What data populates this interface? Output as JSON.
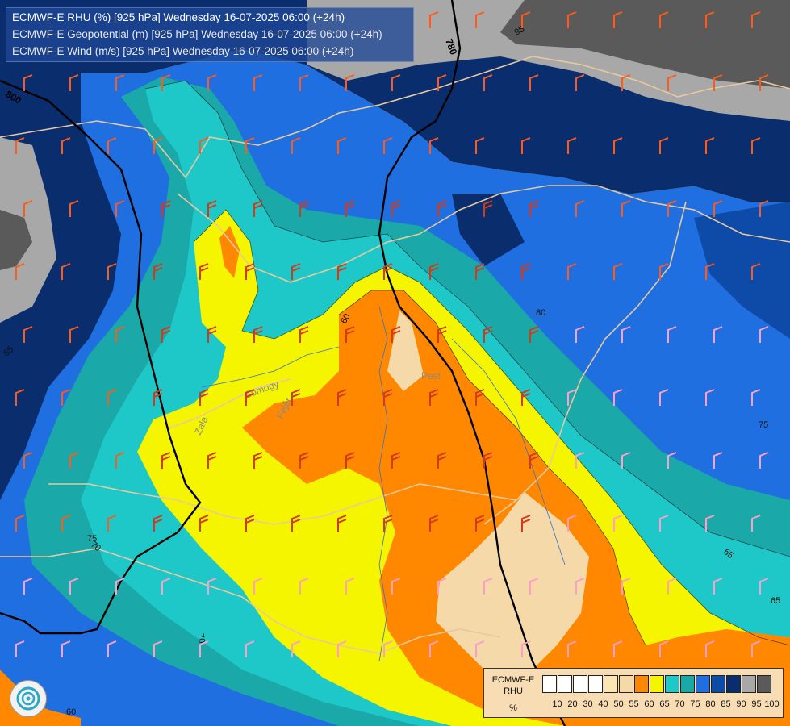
{
  "title": {
    "line1": "ECMWF-E RHU (%) [925 hPa] Wednesday 16-07-2025 06:00 (+24h)",
    "line2": "ECMWF-E Geopotential (m) [925 hPa] Wednesday 16-07-2025 06:00 (+24h)",
    "line3": "ECMWF-E Wind (m/s) [925 hPa] Wednesday 16-07-2025 06:00 (+24h)"
  },
  "legend": {
    "name": "ECMWF-E RHU",
    "unit": "%",
    "levels": [
      "10",
      "20",
      "30",
      "40",
      "50",
      "55",
      "60",
      "65",
      "70",
      "75",
      "80",
      "85",
      "90",
      "95",
      "100"
    ],
    "colors": [
      "#ffffff",
      "#ffffff",
      "#ffffff",
      "#ffffff",
      "#fce5b3",
      "#f5d9a8",
      "#ff8800",
      "#f5f500",
      "#1ec8c8",
      "#1aa8a8",
      "#1f6fe0",
      "#0e4aa8",
      "#0a2d6e",
      "#a8a8a8",
      "#5a5a5a"
    ]
  },
  "contour_labels": {
    "geopotential": [
      "800",
      "780"
    ],
    "rhu": [
      "95",
      "65",
      "60",
      "80",
      "75",
      "70",
      "65",
      "70",
      "75",
      "65",
      "60"
    ]
  },
  "place_labels": [
    "Zala",
    "Somogy",
    "Fejér",
    "Pest"
  ],
  "colors": {
    "very_dry": "#f5d9a8",
    "orange": "#ff8800",
    "yellow": "#f5f500",
    "cyan": "#1ec8c8",
    "teal": "#1aa8a8",
    "blue": "#1f6fe0",
    "mid_blue": "#0e4aa8",
    "navy": "#0a2d6e",
    "gray": "#a8a8a8",
    "dark_gray": "#5a5a5a",
    "border": "#e8c8a0",
    "geopotential_line": "#000000"
  },
  "icons": {
    "wind_barb": "wind-barb-icon",
    "logo": "ecmwf-logo-icon"
  }
}
